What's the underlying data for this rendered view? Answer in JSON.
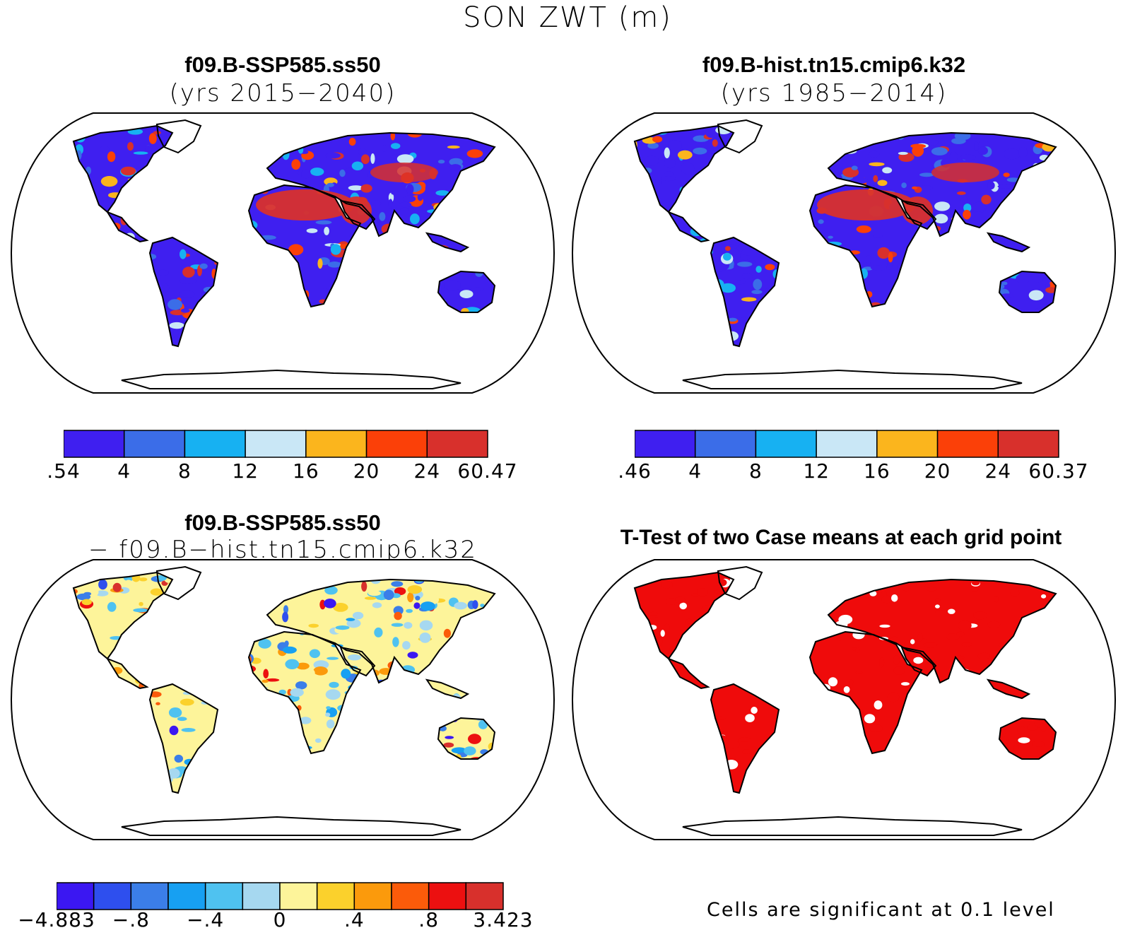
{
  "figure": {
    "title": "SON ZWT (m)"
  },
  "panels": [
    {
      "id": "case1",
      "title": "f09.B-SSP585.ss50",
      "subtitle": "(yrs 2015−2040)",
      "colorbar": {
        "colors": [
          "#3f1ff0",
          "#3b6de8",
          "#17b1f2",
          "#c9e7f6",
          "#fbb51d",
          "#fb4008",
          "#d8302c"
        ],
        "labels": [
          ".54",
          "4",
          "8",
          "12",
          "16",
          "20",
          "24",
          "60.47"
        ]
      }
    },
    {
      "id": "case2",
      "title": "f09.B-hist.tn15.cmip6.k32",
      "subtitle": "(yrs 1985−2014)",
      "colorbar": {
        "colors": [
          "#3f1ff0",
          "#3b6de8",
          "#17b1f2",
          "#c9e7f6",
          "#fbb51d",
          "#fb4008",
          "#d8302c"
        ],
        "labels": [
          ".46",
          "4",
          "8",
          "12",
          "16",
          "20",
          "24",
          "60.37"
        ]
      }
    },
    {
      "id": "diff",
      "title": "f09.B-SSP585.ss50",
      "subtitle": "− f09.B−hist.tn15.cmip6.k32",
      "colorbar": {
        "colors": [
          "#3b17f2",
          "#2e4fee",
          "#3b7ee8",
          "#17a0f2",
          "#4fc2f0",
          "#a6d8f0",
          "#fdf49a",
          "#fbd12c",
          "#fb9a0c",
          "#fb5b0a",
          "#ec1010",
          "#d8302c"
        ],
        "labels": [
          "−4.883",
          "−.8",
          "−.4",
          "0",
          ".4",
          ".8",
          "3.423"
        ]
      }
    },
    {
      "id": "ttest",
      "title": "T-Test of two Case means at each grid point",
      "note": "Cells are significant at 0.1 level",
      "significant_color": "#ef0b0b"
    }
  ]
}
